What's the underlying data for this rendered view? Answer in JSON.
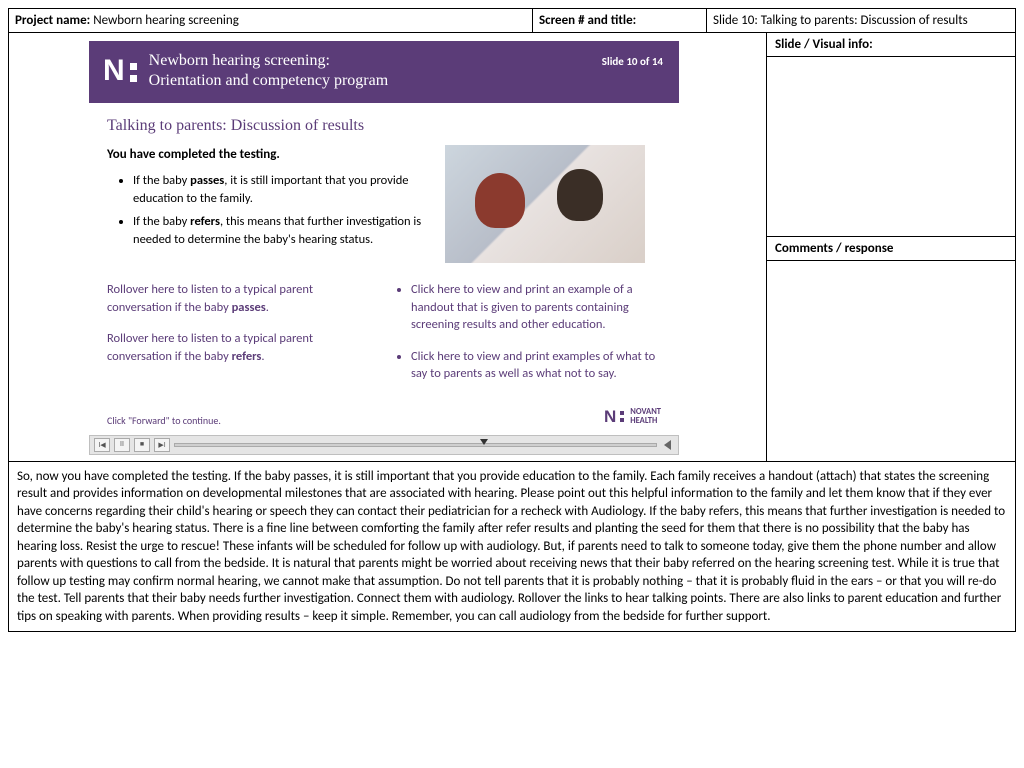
{
  "header": {
    "project_label": "Project name:",
    "project_value": "Newborn hearing screening",
    "screen_label": "Screen # and title:",
    "screen_value": "Slide 10: Talking to parents: Discussion of results"
  },
  "sidebar": {
    "visual_header": "Slide / Visual info:",
    "comments_header": "Comments / response"
  },
  "slide": {
    "colors": {
      "purple": "#5b3c78",
      "white": "#ffffff",
      "player_bg": "#e5e5e5"
    },
    "bar_title1": "Newborn hearing screening:",
    "bar_title2": "Orientation and competency program",
    "slide_num": "Slide 10 of  14",
    "subtitle": "Talking to parents: Discussion of results",
    "lead": "You have completed the testing.",
    "bullets": [
      "If the baby passes, it is still important that you provide education to the family.",
      "If the baby refers, this means that further investigation is needed to determine the baby's hearing status."
    ],
    "link_left_1a": "Rollover here to listen to a typical parent conversation if the baby ",
    "link_left_1b": "passes",
    "link_left_2a": "Rollover here to listen to a typical parent conversation if the baby ",
    "link_left_2b": "refers",
    "link_right": [
      "Click here to view and print an example of a handout that is given to parents containing screening results and other education.",
      "Click here to view and print examples of what to say to parents as well as what not to say."
    ],
    "forward": "Click \"Forward\" to continue.",
    "brand": "NOVANT",
    "brand2": "HEALTH"
  },
  "script": {
    "text": "So, now you have completed the testing. If the baby passes, it is still important that you provide education to the family.  Each family receives a handout (attach) that states the screening result and provides information on developmental milestones that are associated with hearing.  Please point out this helpful information to the family and let them know that if they ever have concerns regarding their child's hearing or speech they can contact their pediatrician for a recheck with Audiology. If the baby refers, this means that further investigation is needed to determine the baby's hearing status. There is a fine line between comforting the family after refer results and planting the seed for them that there is no possibility that the baby has hearing loss.  Resist the urge to rescue!  These infants will be scheduled for follow up with audiology.  But, if parents need to talk to someone today, give them the phone number and allow parents with questions to call from the bedside. It is natural that parents might be worried about receiving news that their baby referred on the hearing screening test.  While it is true that follow up testing may confirm normal hearing, we cannot make that assumption.  Do not tell parents that it is probably nothing – that it is probably fluid in the ears – or that you will re-do the test.  Tell parents that their baby needs further investigation.  Connect them with audiology.  Rollover the links to hear talking points. There are also links to parent education and further tips on speaking with parents. When providing results – keep it simple.  Remember, you can call audiology from the bedside for further support."
  }
}
